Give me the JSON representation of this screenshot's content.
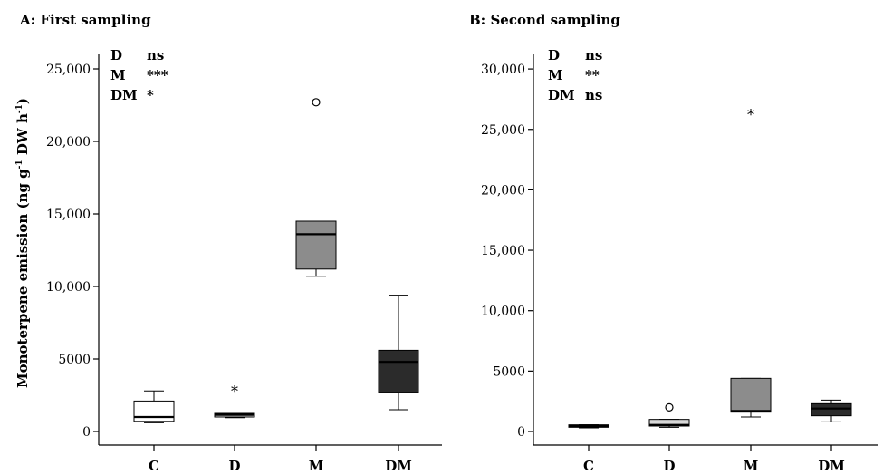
{
  "chart_data": [
    {
      "type": "box",
      "title": "A: First sampling",
      "ylabel": "Monoterpene emission (ng g-1 DW h-1)",
      "ylabel_parts": {
        "before": "Monoterpene emission (ng g",
        "sup1": "-1",
        "middle": " DW h",
        "sup2": "-1",
        "after": ")"
      },
      "ylim": [
        -500,
        26500
      ],
      "yticks": [
        0,
        5000,
        10000,
        15000,
        20000,
        25000
      ],
      "ytick_labels": [
        "0",
        "5000",
        "10,000",
        "15,000",
        "20,000",
        "25,000"
      ],
      "categories": [
        "C",
        "D",
        "M",
        "DM"
      ],
      "significance": [
        {
          "term": "D",
          "value": "ns"
        },
        {
          "term": "M",
          "value": "***"
        },
        {
          "term": "DM",
          "value": "*"
        }
      ],
      "boxes": [
        {
          "category": "C",
          "whisker_low": 600,
          "q1": 700,
          "median": 1000,
          "q3": 2100,
          "whisker_high": 2800,
          "color": "#ffffff"
        },
        {
          "category": "D",
          "whisker_low": 950,
          "q1": 1000,
          "median": 1150,
          "q3": 1250,
          "whisker_high": 1250,
          "color": "#d9d9d9"
        },
        {
          "category": "M",
          "whisker_low": 10700,
          "q1": 11200,
          "median": 13600,
          "q3": 14500,
          "whisker_high": 14500,
          "color": "#8c8c8c"
        },
        {
          "category": "DM",
          "whisker_low": 1500,
          "q1": 2700,
          "median": 4800,
          "q3": 5600,
          "whisker_high": 9400,
          "color": "#2b2b2b"
        }
      ],
      "outliers": [
        {
          "category": "D",
          "value": 3000,
          "marker": "*"
        },
        {
          "category": "M",
          "value": 22700,
          "marker": "o"
        }
      ]
    },
    {
      "type": "box",
      "title": "B: Second sampling",
      "ylim": [
        -1000,
        31500
      ],
      "yticks": [
        0,
        5000,
        10000,
        15000,
        20000,
        25000,
        30000
      ],
      "ytick_labels": [
        "0",
        "5000",
        "10,000",
        "15,000",
        "20,000",
        "25,000",
        "30,000"
      ],
      "categories": [
        "C",
        "D",
        "M",
        "DM"
      ],
      "significance": [
        {
          "term": "D",
          "value": "ns"
        },
        {
          "term": "M",
          "value": "**"
        },
        {
          "term": "DM",
          "value": "ns"
        }
      ],
      "boxes": [
        {
          "category": "C",
          "whisker_low": 300,
          "q1": 350,
          "median": 450,
          "q3": 550,
          "whisker_high": 550,
          "color": "#ffffff"
        },
        {
          "category": "D",
          "whisker_low": 350,
          "q1": 450,
          "median": 550,
          "q3": 1000,
          "whisker_high": 1000,
          "color": "#d9d9d9"
        },
        {
          "category": "M",
          "whisker_low": 1200,
          "q1": 1600,
          "median": 1700,
          "q3": 4400,
          "whisker_high": 4400,
          "color": "#8c8c8c"
        },
        {
          "category": "DM",
          "whisker_low": 800,
          "q1": 1300,
          "median": 1900,
          "q3": 2300,
          "whisker_high": 2600,
          "color": "#2b2b2b"
        }
      ],
      "outliers": [
        {
          "category": "D",
          "value": 2000,
          "marker": "o"
        },
        {
          "category": "M",
          "value": 26500,
          "marker": "*"
        }
      ]
    }
  ]
}
